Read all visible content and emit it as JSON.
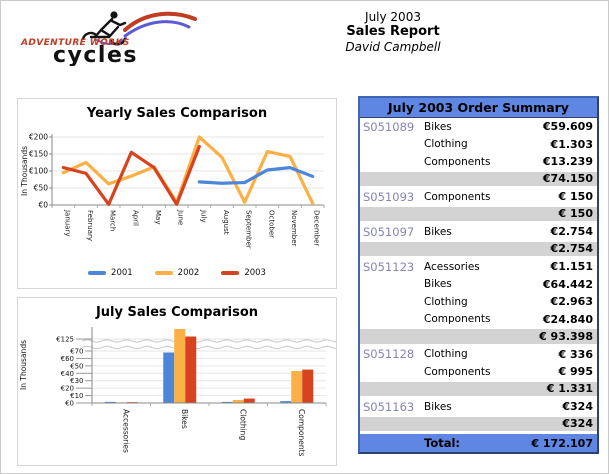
{
  "logo": {
    "brand_top": "ADVENTURE WORKS",
    "brand_bottom": "cycles"
  },
  "header": {
    "period": "July 2003",
    "title": "Sales Report",
    "author": "David Campbell"
  },
  "colors": {
    "series_2001": "#4C86D9",
    "series_2002": "#FBAF45",
    "series_2003": "#D8431F",
    "table_header_blue": "#5E86E2",
    "subtotal_gray": "#D3D3D3",
    "order_number": "#8585B5",
    "logo_red": "#C03C22",
    "logo_purple": "#5B5BD6"
  },
  "chart_data": [
    {
      "type": "line",
      "title": "Yearly Sales Comparison",
      "ylabel": "In Thousands",
      "ylim": [
        0,
        200
      ],
      "grid": true,
      "legend_position": "bottom",
      "y_tick_values": [
        0,
        50,
        100,
        150,
        200
      ],
      "y_ticks": [
        "€0",
        "€50",
        "€100",
        "€150",
        "€200"
      ],
      "categories": [
        "January",
        "February",
        "March",
        "April",
        "May",
        "June",
        "July",
        "August",
        "September",
        "October",
        "November",
        "December"
      ],
      "series": [
        {
          "name": "2001",
          "color": "#4C86D9",
          "values": [
            null,
            null,
            null,
            null,
            null,
            null,
            68,
            64,
            66,
            103,
            110,
            84
          ]
        },
        {
          "name": "2002",
          "color": "#FBAF45",
          "values": [
            95,
            125,
            62,
            85,
            112,
            8,
            200,
            140,
            8,
            157,
            143,
            5
          ]
        },
        {
          "name": "2003",
          "color": "#D8431F",
          "values": [
            110,
            93,
            2,
            155,
            110,
            2,
            172,
            null,
            null,
            null,
            null,
            null
          ]
        }
      ]
    },
    {
      "type": "bar",
      "title": "July Sales Comparison",
      "ylabel": "In Thousands",
      "grid": true,
      "scale_break": {
        "between": [
          70,
          125
        ]
      },
      "y_ticks_left": [
        {
          "v": 0,
          "label": "€0"
        },
        {
          "v": 20,
          "label": "€20"
        },
        {
          "v": 40,
          "label": "€40"
        },
        {
          "v": 60,
          "label": "€60"
        },
        {
          "v": 125,
          "label": "€125"
        }
      ],
      "y_ticks_right": [
        {
          "v": 10,
          "label": "€10"
        },
        {
          "v": 30,
          "label": "€30"
        },
        {
          "v": 50,
          "label": "€50"
        },
        {
          "v": 70,
          "label": "€70"
        }
      ],
      "categories": [
        "Accessories",
        "Bikes",
        "Clothing",
        "Components"
      ],
      "series": [
        {
          "name": "2001",
          "color": "#4C86D9",
          "values": [
            1.5,
            68,
            1.5,
            2.5
          ]
        },
        {
          "name": "2002",
          "color": "#FBAF45",
          "values": [
            0.8,
            133,
            4,
            43
          ]
        },
        {
          "name": "2003",
          "color": "#D8431F",
          "values": [
            1.2,
            127,
            6,
            45
          ]
        }
      ]
    }
  ],
  "order_summary": {
    "title": "July 2003 Order Summary",
    "total_label": "Total:",
    "rows": [
      {
        "type": "detail",
        "order": "S051089",
        "category": "Bikes",
        "amount": "€59.609"
      },
      {
        "type": "detail",
        "category": "Clothing",
        "amount": "€1.303"
      },
      {
        "type": "detail",
        "category": "Components",
        "amount": "€13.239"
      },
      {
        "type": "subtotal",
        "amount": "€74.150"
      },
      {
        "type": "detail",
        "order": "S051093",
        "category": "Components",
        "amount": "€ 150"
      },
      {
        "type": "subtotal",
        "amount": "€ 150"
      },
      {
        "type": "detail",
        "order": "S051097",
        "category": "Bikes",
        "amount": "€2.754"
      },
      {
        "type": "subtotal",
        "amount": "€2.754"
      },
      {
        "type": "detail",
        "order": "S051123",
        "category": "Acessories",
        "amount": "€1.151"
      },
      {
        "type": "detail",
        "category": "Bikes",
        "amount": "€64.442"
      },
      {
        "type": "detail",
        "category": "Clothing",
        "amount": "€2.963"
      },
      {
        "type": "detail",
        "category": "Components",
        "amount": "€24.840"
      },
      {
        "type": "subtotal",
        "amount": "€ 93.398"
      },
      {
        "type": "detail",
        "order": "S051128",
        "category": "Clothing",
        "amount": "€ 336"
      },
      {
        "type": "detail",
        "category": "Components",
        "amount": "€ 995"
      },
      {
        "type": "subtotal",
        "amount": "€ 1.331"
      },
      {
        "type": "detail",
        "order": "S051163",
        "category": "Bikes",
        "amount": "€324"
      },
      {
        "type": "subtotal",
        "amount": "€324"
      },
      {
        "type": "total",
        "label": "Total:",
        "amount": "€ 172.107"
      }
    ]
  }
}
